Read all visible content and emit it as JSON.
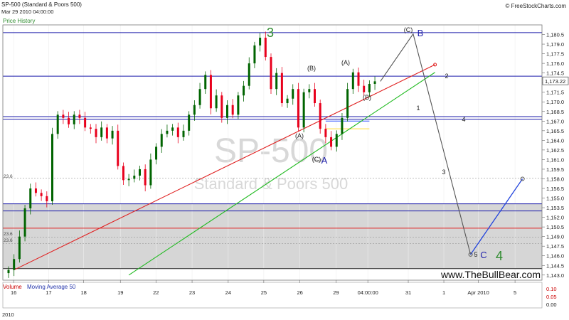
{
  "header": {
    "title": "SP-500 (Standard & Poors 500)",
    "timestamp": "Mar 29 2010 04:00:00",
    "copyright": "© FreeStockCharts.com",
    "panel_label": "Price History"
  },
  "watermark": {
    "symbol": "SP-500",
    "name": "Standard & Poors 500",
    "site": "www.TheBullBear.com"
  },
  "volume_panel": {
    "label": "Volume",
    "indicator": "Moving Average 50",
    "ticks": [
      "0.10",
      "0.05",
      "0.00"
    ]
  },
  "annotations": {
    "wave3": "3",
    "waveB_A": "(B)",
    "waveA_A": "(A)",
    "waveC_A": "(C)",
    "labelA": "A",
    "waveA2": "(A)",
    "waveB2": "(B)",
    "waveC_B": "(C)",
    "labelB": "B",
    "num1": "1",
    "num2": "2",
    "num3": "3",
    "num4": "4",
    "num5": "5",
    "labelC": "C",
    "wave4": "4",
    "fib1": "23.6",
    "fib2": "23.6",
    "fib3": "23.6"
  },
  "colors": {
    "bull": "#006400",
    "bear": "#e8001c",
    "channel": "#1a1aaa",
    "red_line": "#e02020",
    "green_line": "#22bb22",
    "projection": "#555555",
    "projection_up": "#2244dd",
    "zone": "#d6d6d6",
    "wave_green": "#2e8b2e",
    "wave_blue": "#2222aa"
  },
  "chart_data": {
    "type": "candlestick",
    "title": "SP-500 (Standard & Poors 500)",
    "x_tick_labels": [
      "16",
      "17",
      "18",
      "19",
      "22",
      "23",
      "24",
      "25",
      "26",
      "29",
      "04:00:00",
      "31",
      "1",
      "Apr 2010",
      "5"
    ],
    "x_axis_year_label": "2010",
    "y_ticks": [
      1143.0,
      1144.5,
      1146.0,
      1147.5,
      1149.0,
      1150.5,
      1152.0,
      1153.5,
      1155.0,
      1156.5,
      1158.0,
      1159.5,
      1161.0,
      1162.5,
      1164.0,
      1165.5,
      1167.0,
      1168.5,
      1170.0,
      1171.5,
      1173.0,
      1174.5,
      1176.0,
      1177.5,
      1179.0,
      1180.5
    ],
    "ylim": [
      1142.2,
      1182.0
    ],
    "last_price": "1,173.22",
    "horizontal_levels": [
      1180.8,
      1174.0,
      1167.7,
      1167.3,
      1154.1,
      1153.0,
      1150.3,
      1144.0
    ],
    "gray_zone": [
      1144.0,
      1154.1
    ],
    "close_path": [
      1143.8,
      1145.5,
      1149.0,
      1153.4,
      1156.5,
      1155.8,
      1155.3,
      1154.5,
      1165.0,
      1168.0,
      1167.5,
      1166.5,
      1168.0,
      1167.5,
      1166.0,
      1165.8,
      1164.5,
      1166.0,
      1164.3,
      1165.5,
      1160.0,
      1157.8,
      1158.0,
      1158.5,
      1159.5,
      1157.0,
      1161.0,
      1163.0,
      1165.0,
      1165.5,
      1166.0,
      1164.5,
      1165.5,
      1168.0,
      1169.5,
      1172.0,
      1174.2,
      1169.0,
      1171.0,
      1167.5,
      1169.5,
      1168.0,
      1171.0,
      1172.5,
      1176.0,
      1178.8,
      1180.0,
      1177.0,
      1172.0,
      1174.5,
      1169.8,
      1170.5,
      1172.0,
      1166.0,
      1171.5,
      1172.0,
      1169.8,
      1165.8,
      1164.5,
      1163.0,
      1165.0,
      1167.5,
      1172.0,
      1174.6,
      1172.5,
      1171.5,
      1172.8,
      1173.2
    ],
    "red_trendline": [
      [
        1,
        1143.8
      ],
      [
        78,
        1175.8
      ]
    ],
    "green_trendline": [
      [
        22,
        1143.0
      ],
      [
        78,
        1174.6
      ]
    ],
    "projection": [
      [
        68,
        1173.2
      ],
      [
        74,
        1180.6
      ],
      [
        84.5,
        1146.2
      ]
    ],
    "projection_up": [
      [
        84.5,
        1146.2
      ],
      [
        94,
        1158.0
      ]
    ]
  }
}
